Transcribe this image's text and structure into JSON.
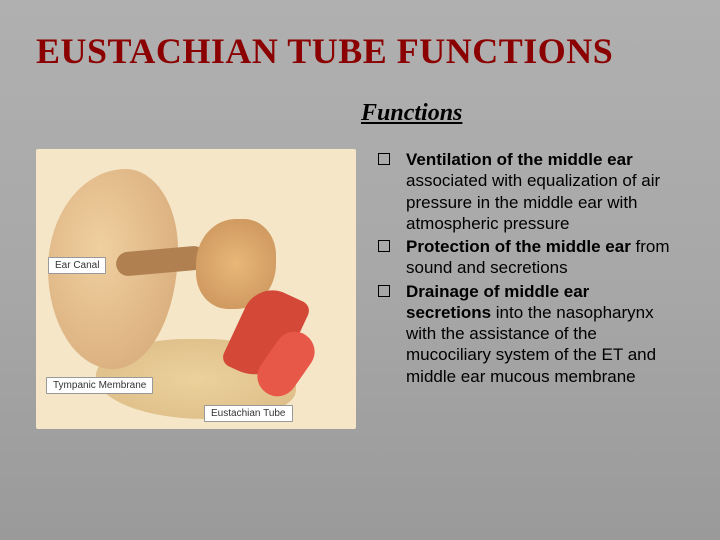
{
  "title": "EUSTACHIAN TUBE FUNCTIONS",
  "subtitle": "Functions",
  "image": {
    "labels": {
      "ear_canal": "Ear Canal",
      "tympanic": "Tympanic Membrane",
      "eustachian": "Eustachian Tube"
    },
    "colors": {
      "background": "#f5e6c8",
      "ear_flesh": "#d4a574",
      "tube_red": "#d44838",
      "tissue": "#d0a868"
    }
  },
  "bullets": [
    {
      "bold": "Ventilation of the middle ear",
      "rest": " associated with equalization of air pressure in the middle ear with atmospheric pressure"
    },
    {
      "bold": "Protection of the middle ear",
      "rest": " from sound and secretions"
    },
    {
      "bold": "Drainage of middle ear secretions",
      "rest": " into the nasopharynx with the assistance of the mucociliary system of the ET and middle ear mucous membrane"
    }
  ],
  "styling": {
    "title_color": "#8b0000",
    "title_fontsize": 36,
    "title_font": "Times New Roman",
    "subtitle_fontsize": 24,
    "body_fontsize": 17,
    "body_font": "Arial",
    "background_gradient": [
      "#b0b0b0",
      "#9a9a9a"
    ],
    "bullet_marker": "hollow-square"
  }
}
